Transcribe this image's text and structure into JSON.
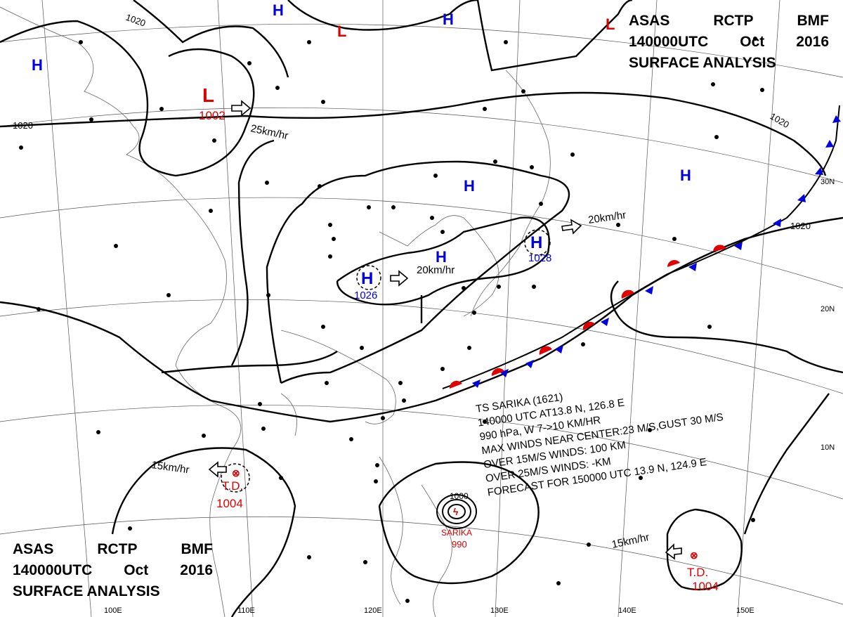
{
  "header_top": {
    "line1": [
      "ASAS",
      "RCTP",
      "BMF"
    ],
    "line2": [
      "140000UTC",
      "Oct",
      "2016"
    ],
    "line3": "SURFACE ANALYSIS"
  },
  "header_bottom": {
    "line1": [
      "ASAS",
      "RCTP",
      "BMF"
    ],
    "line2": [
      "140000UTC",
      "Oct",
      "2016"
    ],
    "line3": "SURFACE ANALYSIS"
  },
  "typhoon_info": {
    "line1": "TS  SARIKA  (1621)",
    "line2": "140000 UTC  AT13.8 N, 126.8 E",
    "line3": "990 hPa, W  7->10 KM/HR",
    "line4": "MAX WINDS NEAR CENTER:23 M/S,GUST 30 M/S",
    "line5": "OVER 15M/S WINDS:  100 KM",
    "line6": "OVER 25M/S WINDS:  -KM",
    "line7": "FORECAST FOR 150000 UTC 13.9 N, 124.9 E"
  },
  "pressure_centers": [
    {
      "type": "L",
      "value": "1002",
      "color": "#e00000"
    },
    {
      "type": "H",
      "value": "1026",
      "color": "#0000e0"
    },
    {
      "type": "H",
      "value": "1028",
      "color": "#0000e0"
    },
    {
      "type": "T.D.",
      "value": "1004",
      "color": "#e00000"
    },
    {
      "type": "T.D.",
      "value": "1004",
      "color": "#e00000"
    },
    {
      "type": "SARIKA",
      "value": "990",
      "color": "#e00000"
    }
  ],
  "lone_symbols": {
    "H": "H",
    "L": "L"
  },
  "isobar_labels": [
    "1020",
    "1020",
    "1020",
    "1020",
    "1000"
  ],
  "motion_labels": [
    "25km/hr",
    "20km/hr",
    "20km/hr",
    "15km/hr",
    "15km/hr"
  ],
  "latitude_labels": [
    "30N",
    "20N",
    "10N"
  ],
  "longitude_labels": [
    "100E",
    "110E",
    "120E",
    "130E",
    "140E",
    "150E"
  ],
  "colors": {
    "high": "#0000e0",
    "low": "#e00000",
    "front_cold": "#0000e0",
    "front_warm": "#e00000"
  }
}
